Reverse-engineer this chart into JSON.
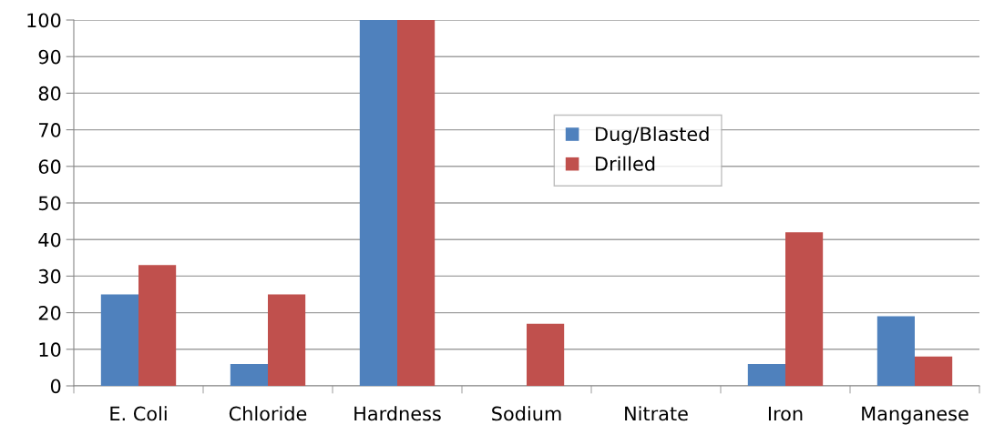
{
  "chart_data": {
    "type": "bar",
    "categories": [
      "E. Coli",
      "Chloride",
      "Hardness",
      "Sodium",
      "Nitrate",
      "Iron",
      "Manganese"
    ],
    "series": [
      {
        "name": "Dug/Blasted",
        "color": "#4f81bd",
        "values": [
          25,
          6,
          100,
          0,
          0,
          6,
          19
        ]
      },
      {
        "name": "Drilled",
        "color": "#c0504d",
        "values": [
          33,
          25,
          100,
          17,
          0,
          42,
          8
        ]
      }
    ],
    "ylim": [
      0,
      100
    ],
    "yticks": [
      0,
      10,
      20,
      30,
      40,
      50,
      60,
      70,
      80,
      90,
      100
    ],
    "grid": "y",
    "legend": "center right"
  }
}
